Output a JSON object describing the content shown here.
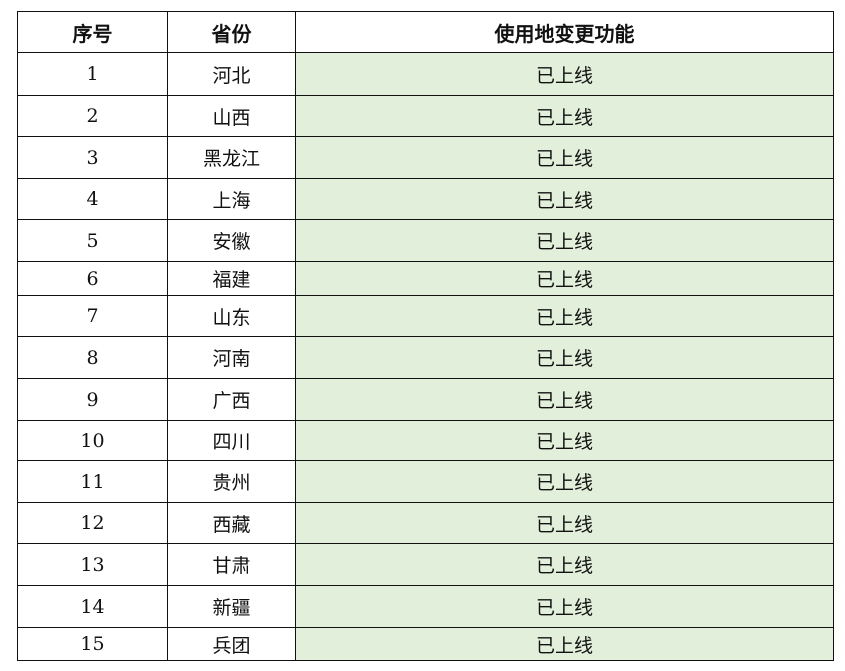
{
  "table": {
    "header": [
      "序号",
      "省份",
      "使用地变更功能"
    ],
    "rows": [
      [
        "1",
        "河北",
        "已上线"
      ],
      [
        "2",
        "山西",
        "已上线"
      ],
      [
        "3",
        "黑龙江",
        "已上线"
      ],
      [
        "4",
        "上海",
        "已上线"
      ],
      [
        "5",
        "安徽",
        "已上线"
      ],
      [
        "6",
        "福建",
        "已上线"
      ],
      [
        "7",
        "山东",
        "已上线"
      ],
      [
        "8",
        "河南",
        "已上线"
      ],
      [
        "9",
        "广西",
        "已上线"
      ],
      [
        "10",
        "四川",
        "已上线"
      ],
      [
        "11",
        "贵州",
        "已上线"
      ],
      [
        "12",
        "西藏",
        "已上线"
      ],
      [
        "13",
        "甘肃",
        "已上线"
      ],
      [
        "14",
        "新疆",
        "已上线"
      ],
      [
        "15",
        "兵团",
        "已上线"
      ]
    ]
  }
}
